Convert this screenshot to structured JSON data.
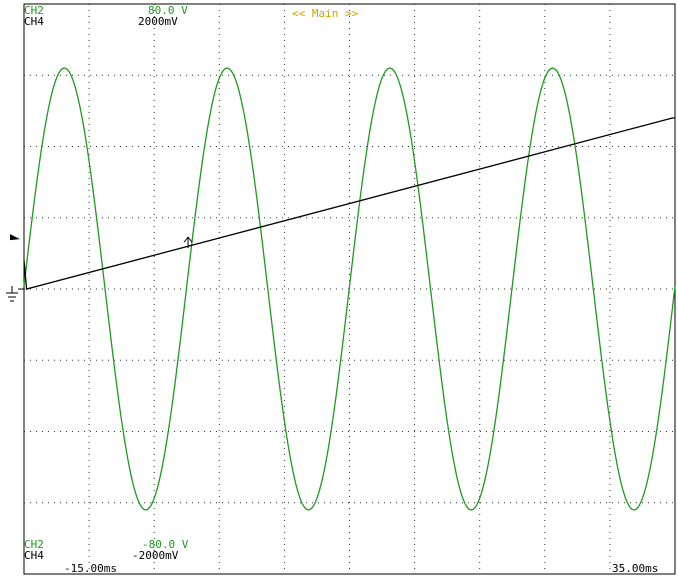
{
  "header": {
    "ch2_label": "CH2",
    "ch4_label": "CH4",
    "ch2_top_scale": "80.0 V",
    "ch4_top_scale": "2000mV",
    "view_title": "<< Main >>"
  },
  "footer": {
    "ch2_label": "CH2",
    "ch4_label": "CH4",
    "ch2_bottom_scale": "-80.0 V",
    "ch4_bottom_scale": "-2000mV",
    "time_start": "-15.00ms",
    "time_end": "35.00ms"
  },
  "colors": {
    "ch2": "#1e9a1e",
    "ch4": "#000000",
    "title": "#c8a400",
    "grid": "#333333"
  },
  "chart_data": {
    "type": "line",
    "x_range_ms": [
      -15.0,
      35.0
    ],
    "grid": true,
    "grid_divisions": {
      "x": 10,
      "y": 8
    },
    "series": [
      {
        "name": "CH2",
        "waveform": "sine",
        "ylim": [
          -80.0,
          80.0
        ],
        "amplitude": 62,
        "frequency_hz": 80,
        "first_peak_ms": -11.9
      },
      {
        "name": "CH4",
        "waveform": "sawtooth",
        "ylim": [
          -2000,
          2000
        ],
        "points": [
          {
            "x": -15.0,
            "y": 200
          },
          {
            "x": -14.8,
            "y": 0
          },
          {
            "x": 34.8,
            "y": 1200
          },
          {
            "x": 35.0,
            "y": 1200
          }
        ]
      }
    ],
    "markers": [
      {
        "name": "trigger-point",
        "x": -2.4,
        "y": 350
      }
    ]
  }
}
